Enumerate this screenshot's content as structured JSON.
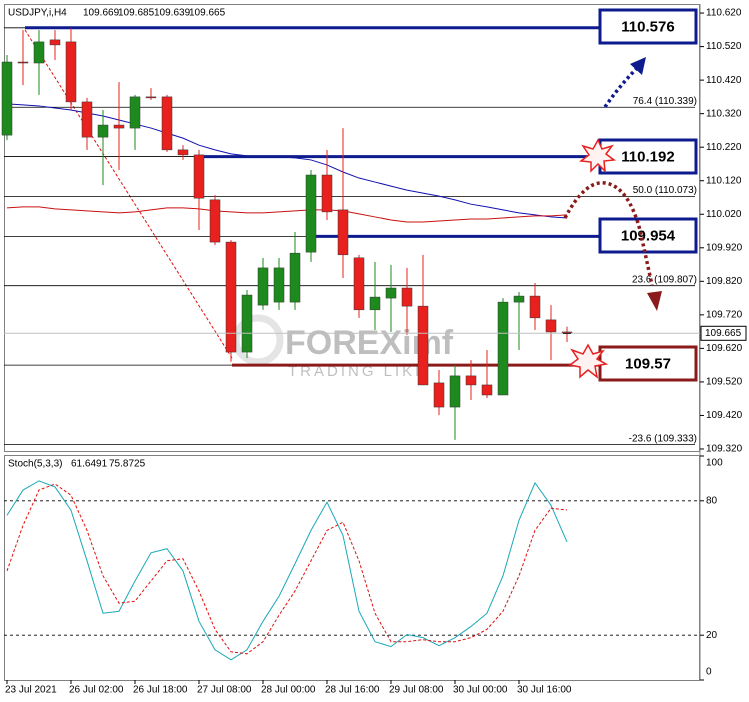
{
  "chart_data": {
    "type": "candlestick",
    "title": "USDJPY,i,H4",
    "categories": [
      "23 Jul 2021",
      null,
      null,
      null,
      "26 Jul 02:00",
      null,
      null,
      null,
      "26 Jul 18:00",
      null,
      null,
      null,
      "27 Jul 08:00",
      null,
      null,
      null,
      "28 Jul 00:00",
      null,
      null,
      null,
      "28 Jul 16:00",
      null,
      null,
      null,
      "29 Jul 08:00",
      null,
      null,
      null,
      "30 Jul 00:00",
      null,
      null,
      null,
      "30 Jul 16:00",
      null,
      null,
      null
    ],
    "open": [
      110.256,
      110.474,
      110.471,
      110.54,
      110.534,
      110.355,
      110.25,
      110.286,
      110.277,
      110.37,
      110.37,
      110.212,
      110.197,
      110.063,
      109.937,
      109.609,
      109.749,
      109.758,
      109.758,
      109.907,
      110.137,
      110.033,
      109.89,
      109.735,
      109.77,
      109.8,
      109.746,
      109.517,
      109.445,
      109.538,
      109.511,
      109.481,
      109.758,
      109.776,
      109.705,
      109.669
    ],
    "high": [
      110.495,
      110.569,
      110.569,
      110.569,
      110.575,
      110.367,
      110.331,
      110.414,
      110.376,
      110.396,
      110.376,
      110.226,
      110.212,
      110.077,
      109.943,
      109.794,
      109.89,
      109.89,
      109.967,
      110.152,
      110.212,
      110.277,
      109.899,
      109.878,
      109.869,
      109.86,
      109.899,
      109.556,
      109.571,
      109.585,
      109.615,
      109.77,
      109.788,
      109.815,
      109.749,
      109.685
    ],
    "low": [
      110.241,
      110.405,
      110.376,
      110.48,
      110.331,
      110.212,
      110.107,
      110.152,
      110.212,
      110.361,
      110.206,
      110.182,
      109.973,
      109.928,
      109.58,
      109.591,
      109.735,
      109.735,
      109.735,
      109.878,
      110.003,
      109.83,
      109.711,
      109.675,
      109.669,
      109.66,
      109.511,
      109.421,
      109.347,
      109.466,
      109.472,
      109.481,
      109.615,
      109.675,
      109.585,
      109.639
    ],
    "close": [
      110.474,
      110.471,
      110.534,
      110.525,
      110.355,
      110.25,
      110.286,
      110.277,
      110.37,
      110.367,
      110.212,
      110.197,
      110.068,
      109.937,
      109.609,
      109.779,
      109.86,
      109.86,
      109.904,
      110.137,
      110.027,
      109.899,
      109.735,
      109.773,
      109.8,
      109.746,
      109.511,
      109.445,
      109.538,
      109.511,
      109.481,
      109.758,
      109.776,
      109.711,
      109.669,
      109.665
    ],
    "up_color": "#1e8a1e",
    "down_color": "#e8201e",
    "ylim": [
      109.311,
      110.647
    ],
    "yticks": [
      {
        "value": 110.62,
        "label": "110.620"
      },
      {
        "value": 110.52,
        "label": "110.520"
      },
      {
        "value": 110.42,
        "label": "110.420"
      },
      {
        "value": 110.32,
        "label": "110.320"
      },
      {
        "value": 110.22,
        "label": "110.220"
      },
      {
        "value": 110.12,
        "label": "110.120"
      },
      {
        "value": 110.02,
        "label": "110.020"
      },
      {
        "value": 109.92,
        "label": "109.920"
      },
      {
        "value": 109.82,
        "label": "109.820"
      },
      {
        "value": 109.72,
        "label": "109.720"
      },
      {
        "value": 109.62,
        "label": "109.620"
      },
      {
        "value": 109.52,
        "label": "109.520"
      },
      {
        "value": 109.42,
        "label": "109.420"
      },
      {
        "value": 109.32,
        "label": "109.320"
      }
    ],
    "moving_averages": [
      {
        "color": "#1010b0",
        "values": [
          110.349,
          110.346,
          110.343,
          110.337,
          110.331,
          110.322,
          110.313,
          110.301,
          110.289,
          110.277,
          110.262,
          110.247,
          110.226,
          110.212,
          110.2,
          110.194,
          110.191,
          110.191,
          110.188,
          110.182,
          110.167,
          110.146,
          110.128,
          110.116,
          110.104,
          110.092,
          110.083,
          110.074,
          110.063,
          110.05,
          110.042,
          110.033,
          110.024,
          110.018,
          110.012,
          110.009
        ]
      },
      {
        "color": "#c81010",
        "values": [
          110.039,
          110.042,
          110.042,
          110.036,
          110.033,
          110.03,
          110.027,
          110.024,
          110.027,
          110.033,
          110.039,
          110.039,
          110.036,
          110.03,
          110.027,
          110.024,
          110.024,
          110.027,
          110.03,
          110.033,
          110.033,
          110.03,
          110.021,
          110.012,
          110.003,
          109.997,
          109.997,
          110.0,
          110.003,
          110.006,
          110.006,
          110.009,
          110.012,
          110.015,
          110.015,
          110.018
        ]
      }
    ],
    "levels": [
      {
        "value": 110.576,
        "color": "#0d1b8e"
      },
      {
        "value": 110.192,
        "color": "#0d1b8e"
      },
      {
        "value": 109.954,
        "color": "#0d1b8e"
      },
      {
        "value": 109.57,
        "color": "#8b1a1a"
      }
    ],
    "fib_levels": [
      {
        "value": 110.339,
        "label": "76.4 (110.339)"
      },
      {
        "value": 110.073,
        "label": "50.0 (110.073)"
      },
      {
        "value": 109.807,
        "label": "23.6 (109.807)"
      },
      {
        "value": 109.333,
        "label": "-23.6 (109.333)"
      }
    ],
    "watermark": "FOREXimf",
    "watermark_sub": "TRADING LIKE",
    "stochastic": {
      "title": "Stoch(5,3,3)",
      "ylim": [
        0,
        100
      ],
      "yticks": [
        100,
        80,
        20,
        0
      ],
      "levels": [
        80,
        20
      ],
      "series": [
        {
          "color": "#1aa8b8",
          "values": [
            73.5,
            84.8,
            88.9,
            86.2,
            75.8,
            53.2,
            29.8,
            30.7,
            44.2,
            56.8,
            58.6,
            48.7,
            26.2,
            13.5,
            9.0,
            13.5,
            26.2,
            37.4,
            51.9,
            66.8,
            79.4,
            64.5,
            30.7,
            17.1,
            14.9,
            20.3,
            18.9,
            15.3,
            18.9,
            23.9,
            29.8,
            46.5,
            71.3,
            88.0,
            78.0,
            61.6491
          ]
        },
        {
          "color": "#e01010",
          "dashed": true,
          "values": [
            48.7,
            69.0,
            84.8,
            87.5,
            82.5,
            66.8,
            46.5,
            34.3,
            35.2,
            44.2,
            53.2,
            54.1,
            39.7,
            22.6,
            12.6,
            11.7,
            17.1,
            28.9,
            39.7,
            53.2,
            66.8,
            70.4,
            53.2,
            29.8,
            17.1,
            17.1,
            18.0,
            17.1,
            17.1,
            18.9,
            22.6,
            30.7,
            46.5,
            66.8,
            76.7,
            75.8725
          ]
        }
      ]
    }
  }
}
